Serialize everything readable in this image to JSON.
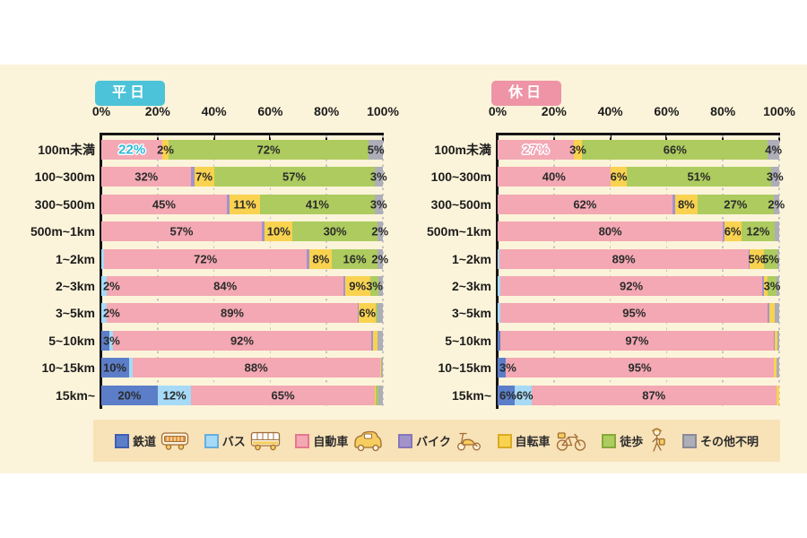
{
  "palette": {
    "page_bg": "#ffffff",
    "band_bg": "#fcf4da",
    "legend_bg": "#f8e2b8",
    "axis": "#151515",
    "grid": "#c3c3c3",
    "text": "#2b2b2b"
  },
  "axis_ticks": [
    "0%",
    "20%",
    "40%",
    "60%",
    "80%",
    "100%"
  ],
  "modes": [
    {
      "label": "鉄道",
      "icon": "train-icon",
      "color": "#5c7ec8",
      "border": "#3d5fb0"
    },
    {
      "label": "バス",
      "icon": "bus-icon",
      "color": "#a6daf6",
      "border": "#66aede"
    },
    {
      "label": "自動車",
      "icon": "car-icon",
      "color": "#f3a8b3",
      "border": "#e5788e"
    },
    {
      "label": "バイク",
      "icon": "scooter-icon",
      "color": "#a294cb",
      "border": "#8677b8"
    },
    {
      "label": "自転車",
      "icon": "bicycle-icon",
      "color": "#f9d250",
      "border": "#d9ac25"
    },
    {
      "label": "徒歩",
      "icon": "walk-icon",
      "color": "#adcb5e",
      "border": "#84a93a"
    },
    {
      "label": "その他不明",
      "icon": "none",
      "color": "#adaeb8",
      "border": "#888a97"
    }
  ],
  "chart_data": [
    {
      "type": "bar",
      "orientation": "horizontal-stacked",
      "title": "平日",
      "badge_color": "#4cc3d8",
      "highlight_color": "#2cb9da",
      "xlim": [
        0,
        100
      ],
      "unit": "%",
      "grid": true,
      "categories": [
        "100m未満",
        "100~300m",
        "300~500m",
        "500m~1km",
        "1~2km",
        "2~3km",
        "3~5km",
        "5~10km",
        "10~15km",
        "15km~"
      ],
      "series": [
        {
          "name": "鉄道",
          "values": [
            0,
            0,
            0,
            0,
            0,
            0,
            0,
            3,
            10,
            20
          ]
        },
        {
          "name": "バス",
          "values": [
            0,
            0,
            0,
            0,
            1,
            2,
            2,
            1,
            1,
            12
          ]
        },
        {
          "name": "自動車",
          "values": [
            22,
            32,
            45,
            57,
            72,
            84,
            89,
            92,
            88,
            65
          ]
        },
        {
          "name": "バイク",
          "values": [
            0,
            1,
            1,
            1,
            1,
            0.5,
            0.5,
            0.5,
            0,
            0
          ]
        },
        {
          "name": "自転車",
          "values": [
            2,
            7,
            11,
            10,
            8,
            9,
            6,
            1.5,
            0.5,
            0.5
          ]
        },
        {
          "name": "徒歩",
          "values": [
            72,
            57,
            41,
            30,
            16,
            3,
            0.5,
            0,
            0,
            1
          ]
        },
        {
          "name": "その他不明",
          "values": [
            5,
            3,
            3,
            2,
            2,
            1.5,
            2,
            2,
            0.5,
            1.5
          ]
        }
      ],
      "bar_labels": [
        [
          "",
          "",
          "22%",
          "",
          "2%",
          "72%",
          "5%"
        ],
        [
          "",
          "",
          "32%",
          "",
          "7%",
          "57%",
          "3%"
        ],
        [
          "",
          "",
          "45%",
          "",
          "11%",
          "41%",
          "3%"
        ],
        [
          "",
          "",
          "57%",
          "",
          "10%",
          "30%",
          "2%"
        ],
        [
          "",
          "",
          "72%",
          "",
          "8%",
          "16%",
          "2%"
        ],
        [
          "",
          "2%",
          "84%",
          "",
          "9%",
          "3%",
          ""
        ],
        [
          "",
          "2%",
          "89%",
          "",
          "6%",
          "",
          ""
        ],
        [
          "3%",
          "",
          "92%",
          "",
          "",
          "",
          ""
        ],
        [
          "10%",
          "",
          "88%",
          "",
          "",
          "",
          ""
        ],
        [
          "20%",
          "12%",
          "65%",
          "",
          "",
          "",
          ""
        ]
      ],
      "highlight": {
        "row": 0,
        "mode": 2
      }
    },
    {
      "type": "bar",
      "orientation": "horizontal-stacked",
      "title": "休日",
      "badge_color": "#ee94a6",
      "highlight_color": "#f09cb2",
      "xlim": [
        0,
        100
      ],
      "unit": "%",
      "grid": true,
      "categories": [
        "100m未満",
        "100~300m",
        "300~500m",
        "500m~1km",
        "1~2km",
        "2~3km",
        "3~5km",
        "5~10km",
        "10~15km",
        "15km~"
      ],
      "series": [
        {
          "name": "鉄道",
          "values": [
            0,
            0,
            0,
            0,
            0,
            0,
            0,
            1,
            3,
            6
          ]
        },
        {
          "name": "バス",
          "values": [
            0,
            0,
            0,
            0,
            0.5,
            1,
            1,
            0,
            0,
            6
          ]
        },
        {
          "name": "自動車",
          "values": [
            27,
            40,
            62,
            80,
            89,
            92,
            95,
            97,
            95,
            87
          ]
        },
        {
          "name": "バイク",
          "values": [
            0,
            0,
            1,
            0.5,
            0.5,
            0.5,
            0.5,
            0.5,
            0,
            0
          ]
        },
        {
          "name": "自転車",
          "values": [
            3,
            6,
            8,
            6,
            5,
            1.5,
            2,
            1,
            1,
            1
          ]
        },
        {
          "name": "徒歩",
          "values": [
            66,
            51,
            27,
            12,
            5,
            3,
            0,
            0,
            0,
            0
          ]
        },
        {
          "name": "その他不明",
          "values": [
            4,
            3,
            2,
            1.5,
            0.5,
            1,
            1.5,
            0.5,
            1,
            0
          ]
        }
      ],
      "bar_labels": [
        [
          "",
          "",
          "27%",
          "",
          "3%",
          "66%",
          "4%"
        ],
        [
          "",
          "",
          "40%",
          "",
          "6%",
          "51%",
          "3%"
        ],
        [
          "",
          "",
          "62%",
          "",
          "8%",
          "27%",
          "2%"
        ],
        [
          "",
          "",
          "80%",
          "",
          "6%",
          "12%",
          ""
        ],
        [
          "",
          "",
          "89%",
          "",
          "5%",
          "5%",
          ""
        ],
        [
          "",
          "",
          "92%",
          "",
          "",
          "3%",
          ""
        ],
        [
          "",
          "",
          "95%",
          "",
          "",
          "",
          ""
        ],
        [
          "",
          "",
          "97%",
          "",
          "",
          "",
          ""
        ],
        [
          "3%",
          "",
          "95%",
          "",
          "",
          "",
          ""
        ],
        [
          "6%",
          "6%",
          "87%",
          "",
          "",
          "",
          ""
        ]
      ],
      "highlight": {
        "row": 0,
        "mode": 2
      }
    }
  ]
}
